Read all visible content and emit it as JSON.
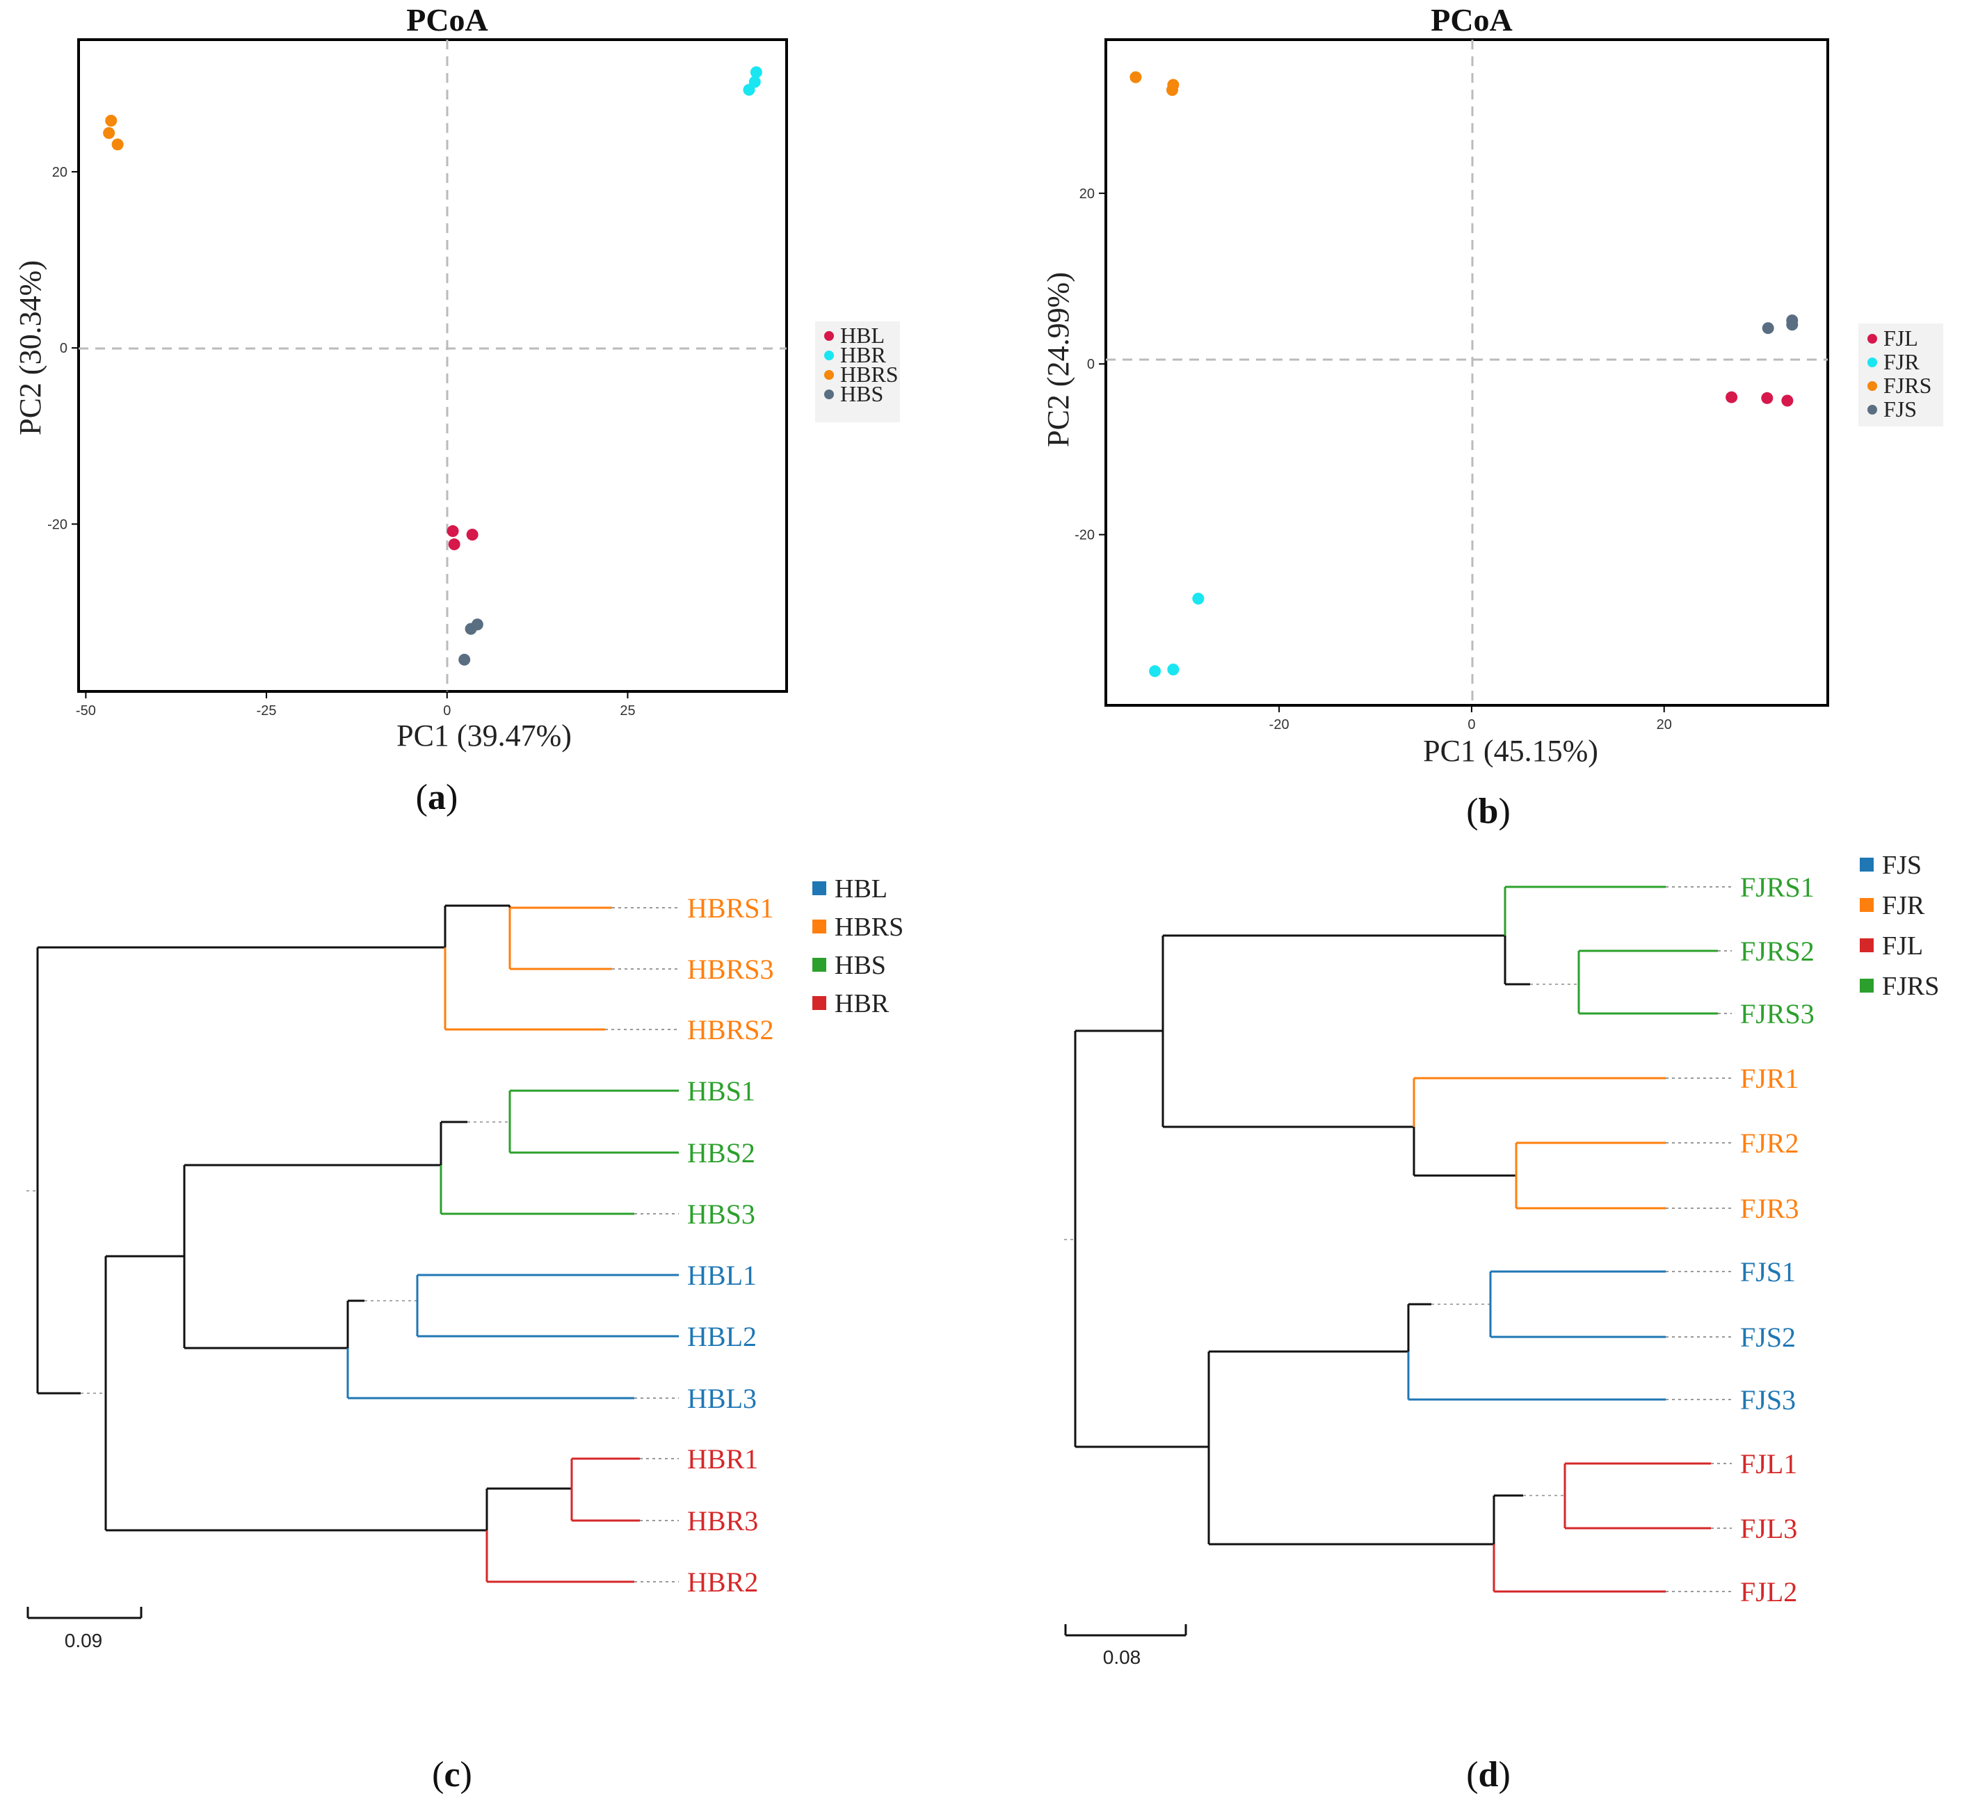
{
  "chart_data": [
    {
      "panel": "a",
      "type": "scatter",
      "title": "PCoA",
      "xlabel": "PC1 (39.47%)",
      "ylabel": "PC2 (30.34%)",
      "xlim": [
        -51,
        47
      ],
      "ylim": [
        -39,
        35
      ],
      "xticks": [
        -50,
        -25,
        0,
        25
      ],
      "yticks": [
        20,
        0,
        -20
      ],
      "series": [
        {
          "name": "HBL",
          "color": "#d6184a",
          "points": [
            [
              0.8,
              -20.8
            ],
            [
              1.0,
              -22.3
            ],
            [
              3.5,
              -21.2
            ]
          ]
        },
        {
          "name": "HBR",
          "color": "#19e6f0",
          "points": [
            [
              42.8,
              31.3
            ],
            [
              42.6,
              30.2
            ],
            [
              41.8,
              29.3
            ]
          ]
        },
        {
          "name": "HBRS",
          "color": "#f5870a",
          "points": [
            [
              -46.5,
              25.8
            ],
            [
              -46.8,
              24.4
            ],
            [
              -45.6,
              23.1
            ]
          ]
        },
        {
          "name": "HBS",
          "color": "#5a6e82",
          "points": [
            [
              4.2,
              -31.4
            ],
            [
              3.3,
              -31.9
            ],
            [
              2.4,
              -35.4
            ]
          ]
        }
      ],
      "legend": [
        "HBL",
        "HBR",
        "HBRS",
        "HBS"
      ]
    },
    {
      "panel": "b",
      "type": "scatter",
      "title": "PCoA",
      "xlabel": "PC1 (45.15%)",
      "ylabel": "PC2 (24.99%)",
      "xlim": [
        -38,
        37
      ],
      "ylim": [
        -40,
        38
      ],
      "xticks": [
        -20,
        0,
        20
      ],
      "yticks": [
        20,
        0,
        -20
      ],
      "series": [
        {
          "name": "FJL",
          "color": "#d6184a",
          "points": [
            [
              27.0,
              -3.9
            ],
            [
              30.7,
              -4.0
            ],
            [
              32.8,
              -4.3
            ]
          ]
        },
        {
          "name": "FJR",
          "color": "#19e6f0",
          "points": [
            [
              -28.4,
              -27.5
            ],
            [
              -32.9,
              -36.0
            ],
            [
              -31.0,
              -35.8
            ]
          ]
        },
        {
          "name": "FJRS",
          "color": "#f5870a",
          "points": [
            [
              -34.9,
              33.6
            ],
            [
              -31.0,
              32.7
            ],
            [
              -31.1,
              32.1
            ]
          ]
        },
        {
          "name": "FJS",
          "color": "#5a6e82",
          "points": [
            [
              30.8,
              4.2
            ],
            [
              33.3,
              4.6
            ],
            [
              33.3,
              5.1
            ]
          ]
        }
      ],
      "legend": [
        "FJL",
        "FJR",
        "FJRS",
        "FJS"
      ]
    }
  ],
  "dendrograms": {
    "c": {
      "legend": [
        {
          "label": "HBL",
          "color": "#1f77b4"
        },
        {
          "label": "HBRS",
          "color": "#ff7f0e"
        },
        {
          "label": "HBS",
          "color": "#2ca02c"
        },
        {
          "label": "HBR",
          "color": "#d62728"
        }
      ],
      "leaves": [
        "HBRS1",
        "HBRS3",
        "HBRS2",
        "HBS1",
        "HBS2",
        "HBS3",
        "HBL1",
        "HBL2",
        "HBL3",
        "HBR1",
        "HBR3",
        "HBR2"
      ],
      "scale": "0.09"
    },
    "d": {
      "legend": [
        {
          "label": "FJS",
          "color": "#1f77b4"
        },
        {
          "label": "FJR",
          "color": "#ff7f0e"
        },
        {
          "label": "FJL",
          "color": "#d62728"
        },
        {
          "label": "FJRS",
          "color": "#2ca02c"
        }
      ],
      "leaves": [
        "FJRS1",
        "FJRS2",
        "FJRS3",
        "FJR1",
        "FJR2",
        "FJR3",
        "FJS1",
        "FJS2",
        "FJS3",
        "FJL1",
        "FJL3",
        "FJL2"
      ],
      "scale": "0.08"
    }
  },
  "panel_labels": {
    "a": "a",
    "b": "b",
    "c": "c",
    "d": "d"
  }
}
